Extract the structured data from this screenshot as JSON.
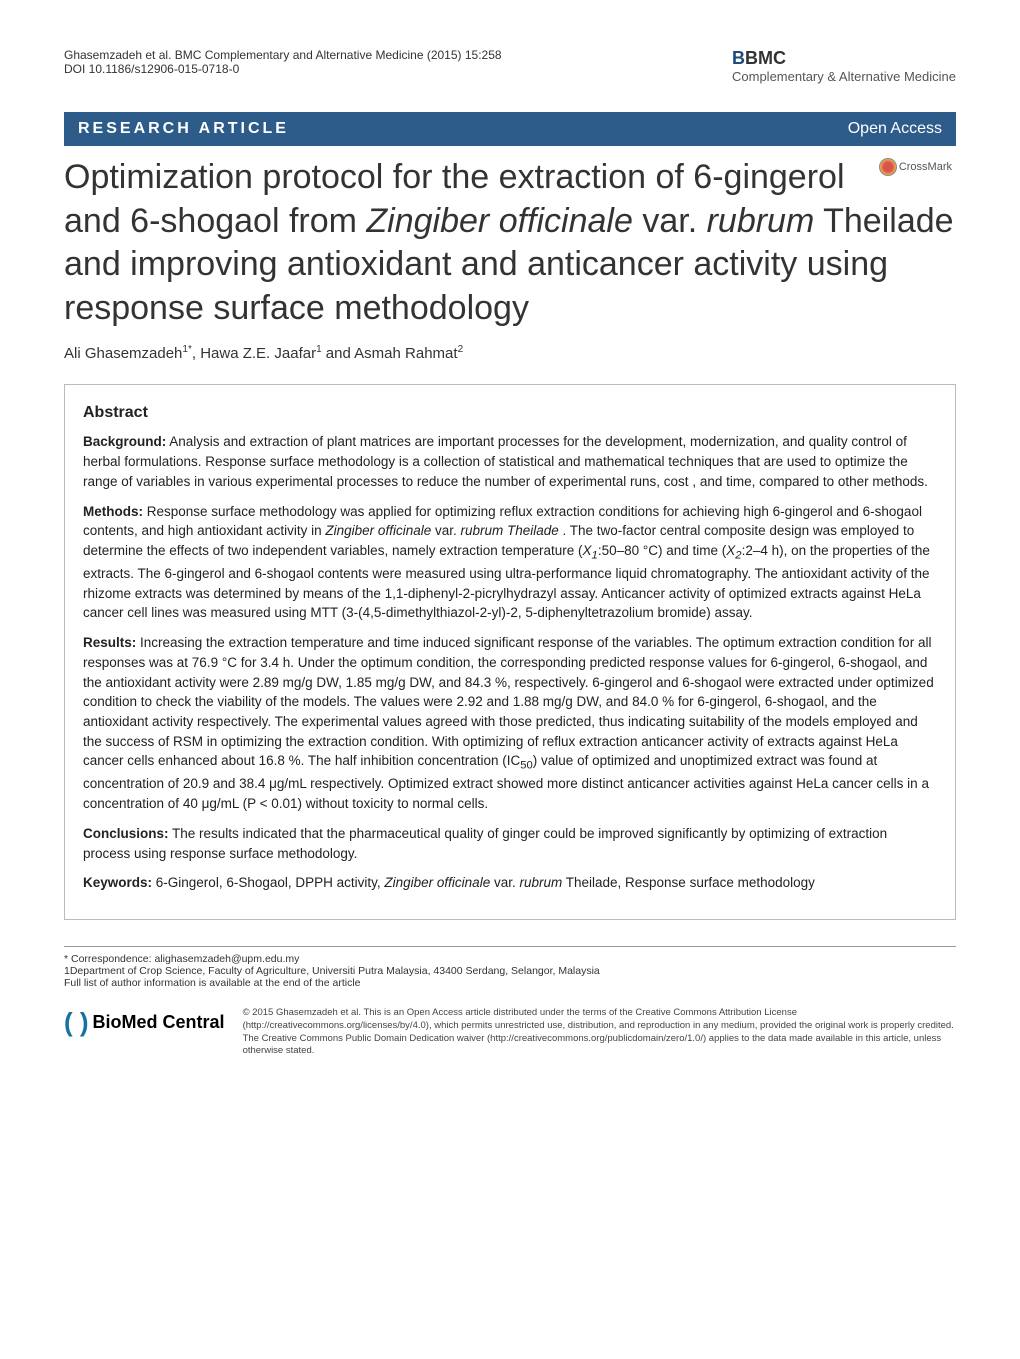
{
  "header": {
    "citation": "Ghasemzadeh et al. BMC Complementary and Alternative Medicine  (2015) 15:258",
    "doi": "DOI 10.1186/s12906-015-0718-0"
  },
  "journal": {
    "bmc": "BMC",
    "subtitle": "Complementary & Alternative Medicine"
  },
  "bar": {
    "article_type": "RESEARCH ARTICLE",
    "open_access": "Open Access"
  },
  "crossmark": "CrossMark",
  "title_html": "Optimization protocol for the extraction of 6-gingerol and 6-shogaol from <em>Zingiber officinale</em> var. <em>rubrum</em> Theilade and improving antioxidant and anticancer activity using response surface methodology",
  "authors_html": "Ali Ghasemzadeh<sup>1*</sup>, Hawa Z.E. Jaafar<sup>1</sup> and Asmah Rahmat<sup>2</sup>",
  "abstract": {
    "heading": "Abstract",
    "background_label": "Background:",
    "background": " Analysis and extraction of plant matrices are important processes for the development, modernization, and quality control of herbal formulations. Response surface methodology is a collection of statistical and mathematical techniques that are used to optimize the range of variables in various experimental processes to reduce the number of experimental runs, cost , and time, compared to other methods.",
    "methods_label": "Methods:",
    "methods_html": " Response surface methodology was applied for optimizing reflux extraction conditions for achieving high 6-gingerol and 6-shogaol contents, and high antioxidant activity in <em>Zingiber officinale</em> var. <em>rubrum Theilade</em> . The two-factor central composite design was employed to determine the effects of two independent variables, namely extraction temperature (<em>X<sub>1</sub></em>:50–80 °C) and time (<em>X<sub>2</sub></em>:2–4 h), on the properties of the extracts. The 6-gingerol and 6-shogaol contents were measured using ultra-performance liquid chromatography. The antioxidant activity of the rhizome extracts was determined by means of the 1,1-diphenyl-2-picrylhydrazyl assay. Anticancer activity of optimized extracts against HeLa cancer cell lines was measured using MTT (3-(4,5-dimethylthiazol-2-yl)-2, 5-diphenyltetrazolium bromide) assay.",
    "results_label": "Results:",
    "results_html": " Increasing the extraction temperature and time induced significant response of the variables. The optimum extraction condition for all responses was at 76.9 °C for 3.4 h. Under the optimum condition, the corresponding predicted response values for 6-gingerol, 6-shogaol, and the antioxidant activity were 2.89 mg/g DW, 1.85 mg/g DW, and 84.3 %, respectively. 6-gingerol and 6-shogaol were extracted under optimized condition to check the viability of the models. The values were 2.92 and 1.88 mg/g DW, and 84.0 % for 6-gingerol, 6-shogaol, and the antioxidant activity respectively. The experimental values agreed with those predicted, thus indicating suitability of the models employed and the success of RSM in optimizing the extraction condition. With optimizing of reflux extraction anticancer activity of extracts against HeLa cancer cells enhanced about 16.8 %. The half inhibition concentration (IC<sub>50</sub>) value of optimized and unoptimized extract was found at concentration of 20.9 and 38.4 μg/mL respectively. Optimized extract showed more distinct anticancer activities against HeLa cancer cells in a concentration of 40 μg/mL (P < 0.01) without toxicity to normal cells.",
    "conclusions_label": "Conclusions:",
    "conclusions": " The results indicated that the pharmaceutical quality of ginger could be improved significantly by optimizing of extraction process using response surface methodology.",
    "keywords_label": "Keywords:",
    "keywords_html": " 6-Gingerol, 6-Shogaol, DPPH activity, <em>Zingiber officinale</em> var. <em>rubrum</em> Theilade, Response surface methodology"
  },
  "footer": {
    "correspondence": "* Correspondence: alighasemzadeh@upm.edu.my",
    "affiliation": "1Department of Crop Science, Faculty of Agriculture, Universiti Putra Malaysia, 43400 Serdang, Selangor, Malaysia",
    "full_list": "Full list of author information is available at the end of the article"
  },
  "license": {
    "logo": "BioMed Central",
    "text": "© 2015 Ghasemzadeh et al. This is an Open Access article distributed under the terms of the Creative Commons Attribution License (http://creativecommons.org/licenses/by/4.0), which permits unrestricted use, distribution, and reproduction in any medium, provided the original work is properly credited. The Creative Commons Public Domain Dedication waiver (http://creativecommons.org/publicdomain/zero/1.0/) applies to the data made available in this article, unless otherwise stated."
  },
  "colors": {
    "bar_bg": "#2d5c8a",
    "bar_fg": "#ffffff",
    "text": "#333333",
    "border": "#bbbbbb"
  }
}
